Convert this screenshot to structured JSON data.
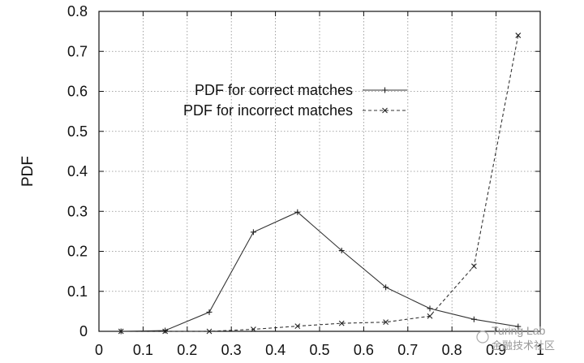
{
  "chart_data": {
    "type": "line",
    "xlabel": "",
    "ylabel": "PDF",
    "xlim": [
      0,
      1
    ],
    "ylim": [
      0,
      0.8
    ],
    "x_ticks": [
      "0",
      "0.1",
      "0.2",
      "0.3",
      "0.4",
      "0.5",
      "0.6",
      "0.7",
      "0.8",
      "0.9",
      "1"
    ],
    "y_ticks": [
      "0",
      "0.1",
      "0.2",
      "0.3",
      "0.4",
      "0.5",
      "0.6",
      "0.7",
      "0.8"
    ],
    "grid": true,
    "legend_position": "upper-center",
    "series": [
      {
        "name": "PDF for correct matches",
        "line_style": "solid",
        "marker": "plus",
        "x": [
          0.05,
          0.15,
          0.25,
          0.35,
          0.45,
          0.55,
          0.65,
          0.75,
          0.85,
          0.95
        ],
        "values": [
          0.0,
          0.002,
          0.048,
          0.248,
          0.298,
          0.202,
          0.11,
          0.057,
          0.03,
          0.012
        ]
      },
      {
        "name": "PDF for incorrect matches",
        "line_style": "dashed",
        "marker": "x",
        "x": [
          0.05,
          0.15,
          0.25,
          0.35,
          0.45,
          0.55,
          0.65,
          0.75,
          0.85,
          0.95
        ],
        "values": [
          0.0,
          0.0,
          0.0,
          0.005,
          0.013,
          0.02,
          0.023,
          0.038,
          0.163,
          0.74
        ]
      }
    ]
  },
  "watermark": {
    "text": "Turing Lab",
    "subtext": "金融技术社区"
  }
}
